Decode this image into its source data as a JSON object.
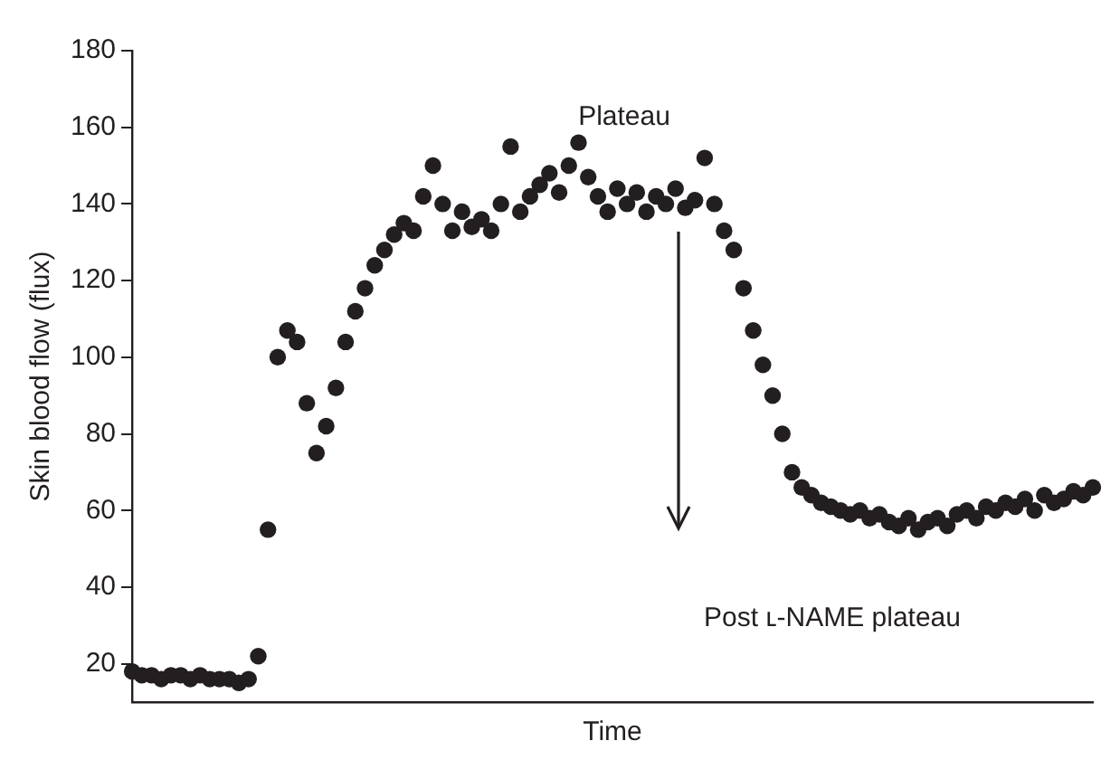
{
  "chart_data": {
    "type": "scatter",
    "xlabel": "Time",
    "ylabel": "Skin blood flow (flux)",
    "categories": [
      null,
      null,
      null,
      null,
      null,
      null,
      null,
      null,
      null,
      null,
      null,
      null,
      null,
      null,
      null,
      null,
      null,
      null,
      null,
      null,
      null,
      null,
      null,
      null,
      null,
      null,
      null,
      null,
      null,
      null,
      null,
      null,
      null,
      null,
      null,
      null,
      null,
      null,
      null,
      null,
      null,
      null,
      null,
      null,
      null,
      null,
      null,
      null,
      null,
      null,
      null,
      null,
      null,
      null,
      null,
      null,
      null,
      null,
      null,
      null,
      null,
      null,
      null,
      null,
      null,
      null,
      null,
      null,
      null,
      null,
      null,
      null,
      null,
      null,
      null,
      null,
      null,
      null,
      null,
      null,
      null,
      null,
      null,
      null,
      null,
      null,
      null,
      null,
      null,
      null,
      null,
      null,
      null,
      null,
      null,
      null,
      null,
      null,
      null,
      null
    ],
    "series": [
      {
        "color": "#231f20",
        "values": [
          18,
          17,
          17,
          16,
          17,
          17,
          16,
          17,
          16,
          16,
          16,
          15,
          16,
          22,
          55,
          100,
          107,
          104,
          88,
          75,
          82,
          92,
          104,
          112,
          118,
          124,
          128,
          132,
          135,
          133,
          142,
          150,
          140,
          133,
          138,
          134,
          136,
          133,
          140,
          155,
          138,
          142,
          145,
          148,
          143,
          150,
          156,
          147,
          142,
          138,
          144,
          140,
          143,
          138,
          142,
          140,
          144,
          139,
          141,
          152,
          140,
          133,
          128,
          118,
          107,
          98,
          90,
          80,
          70,
          66,
          64,
          62,
          61,
          60,
          59,
          60,
          58,
          59,
          57,
          56,
          58,
          55,
          57,
          58,
          56,
          59,
          60,
          58,
          61,
          60,
          62,
          61,
          63,
          60,
          64,
          62,
          63,
          65,
          64,
          66
        ]
      }
    ],
    "ylim": [
      10,
      180
    ],
    "yticks": [
      20,
      40,
      60,
      80,
      100,
      120,
      140,
      160,
      180
    ],
    "tick_labels": "y",
    "grid": false,
    "legend": false,
    "marker": "circle",
    "annotations": [
      "Plateau",
      "Post ʟ-NAME plateau"
    ]
  }
}
